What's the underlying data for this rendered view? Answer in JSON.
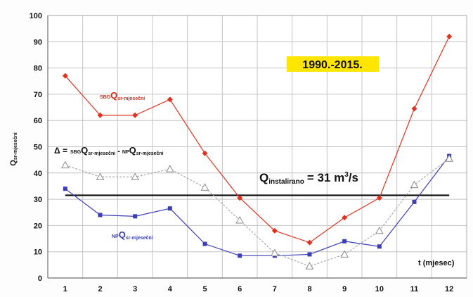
{
  "chart_data": {
    "type": "line",
    "x": [
      1,
      2,
      3,
      4,
      5,
      6,
      7,
      8,
      9,
      10,
      11,
      12
    ],
    "xlim": [
      0.5,
      12.5
    ],
    "ylim": [
      0,
      100
    ],
    "yticks": [
      0,
      10,
      20,
      30,
      40,
      50,
      60,
      70,
      80,
      90,
      100
    ],
    "grid": true,
    "ylabel": "Q",
    "ylabel_sub": "sr-mjesečni",
    "xlabel": "t (mjesec)",
    "period": "1990.-2015.",
    "series": [
      {
        "id": "sbg",
        "color": "#e0321e",
        "marker": "diamond",
        "dash": "",
        "values": [
          77,
          62,
          62,
          68,
          47.5,
          30.5,
          18,
          13.5,
          23,
          30.5,
          64.5,
          92
        ]
      },
      {
        "id": "np",
        "color": "#3b3eb5",
        "marker": "square",
        "dash": "",
        "values": [
          34,
          24,
          23.5,
          26.5,
          13,
          8.5,
          8.5,
          9,
          14,
          12,
          29,
          46.5
        ]
      },
      {
        "id": "delta",
        "color": "#a9a9a9",
        "marker": "triangle",
        "dash": "3,2",
        "values": [
          43,
          38.5,
          38.5,
          41.5,
          34.5,
          22,
          9.5,
          4.5,
          9,
          18,
          35.5,
          45.5
        ]
      }
    ],
    "hline": {
      "y": 31.5,
      "color": "#111111"
    }
  },
  "annotations": {
    "sbg_pre": "SBG",
    "sbg_q": "Q",
    "sbg_sub": "sr-mjesečni",
    "np_pre": "NP",
    "np_q": "Q",
    "np_sub": "sr-mjesečni",
    "delta_sym": "Δ =",
    "delta_sbg": "SBG",
    "delta_q1": "Q",
    "delta_sub1": "sr-mjesečni",
    "delta_minus": "-",
    "delta_np": "NP",
    "delta_q2": "Q",
    "delta_sub2": "sr-mjesečni",
    "qinst_q": "Q",
    "qinst_sub": "instalirano",
    "qinst_val": "= 31 m",
    "qinst_sup": "3",
    "qinst_unit": "/s"
  }
}
